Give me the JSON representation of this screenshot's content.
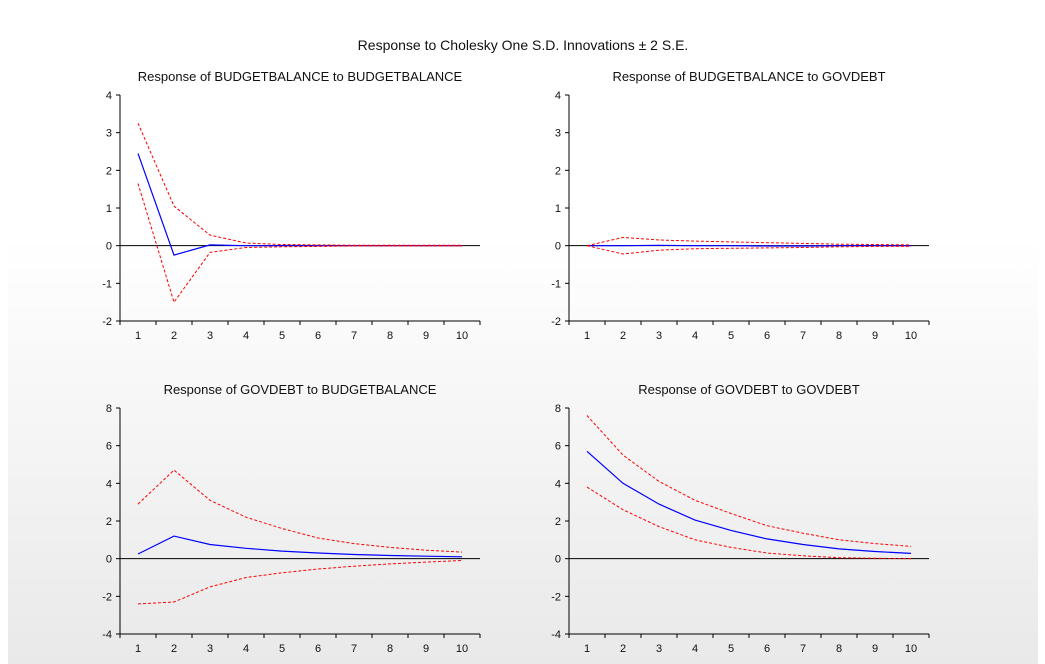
{
  "figure_title": "Response to Cholesky One S.D. Innovations ± 2 S.E.",
  "colors": {
    "response": "#0000ff",
    "band": "#ff0000",
    "axis": "#000000"
  },
  "chart_data": [
    {
      "type": "line",
      "title": "Response of BUDGETBALANCE to BUDGETBALANCE",
      "x": [
        1,
        2,
        3,
        4,
        5,
        6,
        7,
        8,
        9,
        10
      ],
      "ylim": [
        -2,
        4
      ],
      "yticks": [
        -2,
        -1,
        0,
        1,
        2,
        3,
        4
      ],
      "series": [
        {
          "role": "response",
          "values": [
            2.45,
            -0.25,
            0.02,
            0.0,
            0.0,
            0.0,
            0.0,
            0.0,
            0.0,
            0.0
          ]
        },
        {
          "role": "upper",
          "values": [
            3.25,
            1.05,
            0.28,
            0.07,
            0.03,
            0.02,
            0.01,
            0.01,
            0.01,
            0.01
          ]
        },
        {
          "role": "lower",
          "values": [
            1.65,
            -1.5,
            -0.18,
            -0.05,
            -0.03,
            -0.02,
            -0.01,
            -0.01,
            -0.01,
            -0.01
          ]
        }
      ]
    },
    {
      "type": "line",
      "title": "Response of BUDGETBALANCE to GOVDEBT",
      "x": [
        1,
        2,
        3,
        4,
        5,
        6,
        7,
        8,
        9,
        10
      ],
      "ylim": [
        -2,
        4
      ],
      "yticks": [
        -2,
        -1,
        0,
        1,
        2,
        3,
        4
      ],
      "series": [
        {
          "role": "response",
          "values": [
            0.0,
            0.0,
            0.01,
            0.0,
            0.0,
            -0.01,
            -0.01,
            0.0,
            0.0,
            0.0
          ]
        },
        {
          "role": "upper",
          "values": [
            0.0,
            0.22,
            0.15,
            0.12,
            0.1,
            0.08,
            0.06,
            0.04,
            0.03,
            0.02
          ]
        },
        {
          "role": "lower",
          "values": [
            0.0,
            -0.22,
            -0.12,
            -0.08,
            -0.07,
            -0.06,
            -0.05,
            -0.03,
            -0.02,
            -0.02
          ]
        }
      ]
    },
    {
      "type": "line",
      "title": "Response of GOVDEBT to BUDGETBALANCE",
      "x": [
        1,
        2,
        3,
        4,
        5,
        6,
        7,
        8,
        9,
        10
      ],
      "ylim": [
        -4,
        8
      ],
      "yticks": [
        -4,
        -2,
        0,
        2,
        4,
        6,
        8
      ],
      "series": [
        {
          "role": "response",
          "values": [
            0.25,
            1.2,
            0.75,
            0.55,
            0.4,
            0.3,
            0.22,
            0.17,
            0.13,
            0.1
          ]
        },
        {
          "role": "upper",
          "values": [
            2.9,
            4.7,
            3.1,
            2.2,
            1.6,
            1.1,
            0.8,
            0.6,
            0.45,
            0.35
          ]
        },
        {
          "role": "lower",
          "values": [
            -2.4,
            -2.3,
            -1.5,
            -1.0,
            -0.75,
            -0.55,
            -0.4,
            -0.28,
            -0.18,
            -0.1
          ]
        }
      ]
    },
    {
      "type": "line",
      "title": "Response of GOVDEBT to GOVDEBT",
      "x": [
        1,
        2,
        3,
        4,
        5,
        6,
        7,
        8,
        9,
        10
      ],
      "ylim": [
        -4,
        8
      ],
      "yticks": [
        -4,
        -2,
        0,
        2,
        4,
        6,
        8
      ],
      "series": [
        {
          "role": "response",
          "values": [
            5.7,
            4.0,
            2.9,
            2.05,
            1.5,
            1.05,
            0.75,
            0.52,
            0.38,
            0.28
          ]
        },
        {
          "role": "upper",
          "values": [
            7.6,
            5.5,
            4.1,
            3.1,
            2.4,
            1.75,
            1.35,
            1.0,
            0.8,
            0.65
          ]
        },
        {
          "role": "lower",
          "values": [
            3.8,
            2.6,
            1.7,
            1.0,
            0.6,
            0.3,
            0.15,
            0.05,
            0.02,
            0.0
          ]
        }
      ]
    }
  ]
}
